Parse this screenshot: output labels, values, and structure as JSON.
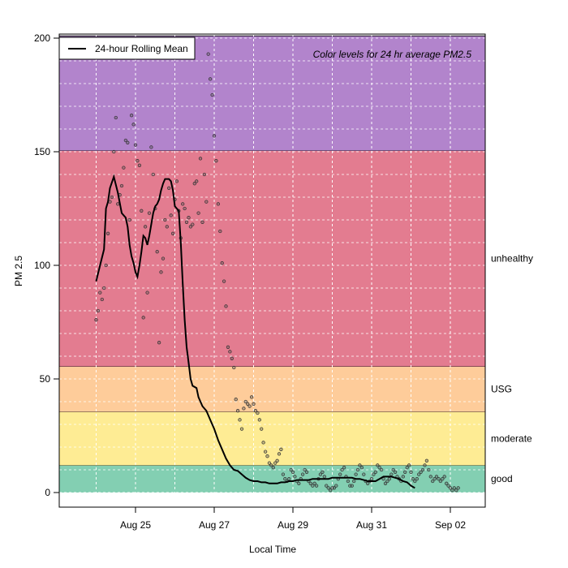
{
  "chart_data": {
    "type": "scatter",
    "title": "",
    "xlabel": "Local Time",
    "ylabel": "PM 2.5",
    "annotation": "Color levels for 24 hr average PM2.5",
    "legend": {
      "label": "24-hour Rolling Mean",
      "placement": "top-left"
    },
    "xlim": [
      0.6,
      11.5
    ],
    "ylim": [
      -6,
      201
    ],
    "grid": true,
    "x_ticks": [
      {
        "value": 2,
        "label": "Aug 25"
      },
      {
        "value": 4,
        "label": "Aug 27"
      },
      {
        "value": 6,
        "label": "Aug 29"
      },
      {
        "value": 8,
        "label": "Aug 31"
      },
      {
        "value": 10,
        "label": "Sep 02"
      }
    ],
    "y_ticks": [
      0,
      50,
      100,
      150,
      200
    ],
    "bands": [
      {
        "name": "good",
        "from": 0,
        "to": 12,
        "color": "#83cfb2"
      },
      {
        "name": "moderate",
        "from": 12,
        "to": 35.5,
        "color": "#feec94"
      },
      {
        "name": "USG",
        "from": 35.5,
        "to": 55.5,
        "color": "#fecc9a"
      },
      {
        "name": "unhealthy",
        "from": 55.5,
        "to": 150.5,
        "color": "#e37c90"
      },
      {
        "name": "",
        "from": 150.5,
        "to": 201,
        "color": "#b284cc"
      }
    ],
    "series": [
      {
        "type": "scatter",
        "points": [
          [
            1.0,
            76
          ],
          [
            1.05,
            80
          ],
          [
            1.1,
            88
          ],
          [
            1.15,
            85
          ],
          [
            1.2,
            90
          ],
          [
            1.25,
            100
          ],
          [
            1.3,
            114
          ],
          [
            1.35,
            128
          ],
          [
            1.4,
            130
          ],
          [
            1.45,
            150
          ],
          [
            1.5,
            165
          ],
          [
            1.55,
            127
          ],
          [
            1.6,
            131
          ],
          [
            1.65,
            135
          ],
          [
            1.7,
            143
          ],
          [
            1.75,
            155
          ],
          [
            1.8,
            154
          ],
          [
            1.85,
            120
          ],
          [
            1.9,
            166
          ],
          [
            1.95,
            162
          ],
          [
            2.0,
            153
          ],
          [
            2.05,
            146
          ],
          [
            2.1,
            144
          ],
          [
            2.15,
            124
          ],
          [
            2.2,
            77
          ],
          [
            2.25,
            117
          ],
          [
            2.3,
            88
          ],
          [
            2.35,
            123
          ],
          [
            2.4,
            152
          ],
          [
            2.45,
            140
          ],
          [
            2.5,
            125
          ],
          [
            2.55,
            106
          ],
          [
            2.6,
            66
          ],
          [
            2.65,
            97
          ],
          [
            2.7,
            103
          ],
          [
            2.75,
            120
          ],
          [
            2.8,
            117
          ],
          [
            2.85,
            134
          ],
          [
            2.9,
            122
          ],
          [
            2.95,
            114
          ],
          [
            3.0,
            129
          ],
          [
            3.05,
            137
          ],
          [
            3.1,
            124
          ],
          [
            3.15,
            112
          ],
          [
            3.2,
            127
          ],
          [
            3.25,
            125
          ],
          [
            3.3,
            119
          ],
          [
            3.35,
            121
          ],
          [
            3.4,
            117
          ],
          [
            3.45,
            118
          ],
          [
            3.5,
            136
          ],
          [
            3.55,
            137
          ],
          [
            3.6,
            123
          ],
          [
            3.65,
            147
          ],
          [
            3.7,
            119
          ],
          [
            3.75,
            140
          ],
          [
            3.8,
            128
          ],
          [
            3.85,
            193
          ],
          [
            3.9,
            182
          ],
          [
            3.95,
            175
          ],
          [
            4.0,
            157
          ],
          [
            4.05,
            146
          ],
          [
            4.1,
            127
          ],
          [
            4.15,
            115
          ],
          [
            4.2,
            101
          ],
          [
            4.25,
            93
          ],
          [
            4.3,
            82
          ],
          [
            4.35,
            64
          ],
          [
            4.4,
            62
          ],
          [
            4.45,
            59
          ],
          [
            4.5,
            55
          ],
          [
            4.55,
            41
          ],
          [
            4.6,
            36
          ],
          [
            4.65,
            32
          ],
          [
            4.7,
            28
          ],
          [
            4.75,
            37
          ],
          [
            4.8,
            40
          ],
          [
            4.85,
            39
          ],
          [
            4.9,
            38
          ],
          [
            4.95,
            42
          ],
          [
            5.0,
            39
          ],
          [
            5.05,
            36
          ],
          [
            5.1,
            35
          ],
          [
            5.15,
            32
          ],
          [
            5.2,
            28
          ],
          [
            5.25,
            22
          ],
          [
            5.3,
            18
          ],
          [
            5.35,
            16
          ],
          [
            5.4,
            13
          ],
          [
            5.45,
            12
          ],
          [
            5.5,
            11
          ],
          [
            5.55,
            13
          ],
          [
            5.6,
            14
          ],
          [
            5.65,
            17
          ],
          [
            5.7,
            19
          ],
          [
            5.75,
            8
          ],
          [
            5.8,
            6
          ],
          [
            5.85,
            5
          ],
          [
            5.9,
            6
          ],
          [
            5.95,
            10
          ],
          [
            6.0,
            9
          ],
          [
            6.05,
            7
          ],
          [
            6.1,
            5
          ],
          [
            6.15,
            4
          ],
          [
            6.2,
            6
          ],
          [
            6.25,
            8
          ],
          [
            6.3,
            10
          ],
          [
            6.35,
            9
          ],
          [
            6.4,
            5
          ],
          [
            6.45,
            4
          ],
          [
            6.5,
            3
          ],
          [
            6.55,
            4
          ],
          [
            6.6,
            3
          ],
          [
            6.65,
            6
          ],
          [
            6.7,
            8
          ],
          [
            6.75,
            9
          ],
          [
            6.8,
            7
          ],
          [
            6.85,
            3
          ],
          [
            6.9,
            2
          ],
          [
            6.95,
            1
          ],
          [
            7.0,
            2
          ],
          [
            7.05,
            2
          ],
          [
            7.1,
            3
          ],
          [
            7.15,
            6
          ],
          [
            7.2,
            8
          ],
          [
            7.25,
            10
          ],
          [
            7.3,
            11
          ],
          [
            7.35,
            7
          ],
          [
            7.4,
            5
          ],
          [
            7.45,
            3
          ],
          [
            7.5,
            3
          ],
          [
            7.55,
            5
          ],
          [
            7.6,
            8
          ],
          [
            7.65,
            10
          ],
          [
            7.7,
            12
          ],
          [
            7.75,
            11
          ],
          [
            7.8,
            8
          ],
          [
            7.85,
            5
          ],
          [
            7.9,
            4
          ],
          [
            7.95,
            5
          ],
          [
            8.0,
            6
          ],
          [
            8.05,
            8
          ],
          [
            8.1,
            9
          ],
          [
            8.15,
            12
          ],
          [
            8.2,
            11
          ],
          [
            8.25,
            10
          ],
          [
            8.3,
            6
          ],
          [
            8.35,
            4
          ],
          [
            8.4,
            5
          ],
          [
            8.45,
            6
          ],
          [
            8.5,
            8
          ],
          [
            8.55,
            10
          ],
          [
            8.6,
            9
          ],
          [
            8.65,
            7
          ],
          [
            8.7,
            6
          ],
          [
            8.75,
            5
          ],
          [
            8.8,
            7
          ],
          [
            8.85,
            9
          ],
          [
            8.9,
            11
          ],
          [
            8.95,
            12
          ],
          [
            9.0,
            9
          ],
          [
            9.05,
            6
          ],
          [
            9.1,
            5
          ],
          [
            9.15,
            6
          ],
          [
            9.2,
            8
          ],
          [
            9.25,
            9
          ],
          [
            9.3,
            10
          ],
          [
            9.35,
            12
          ],
          [
            9.4,
            14
          ],
          [
            9.45,
            10
          ],
          [
            9.5,
            7
          ],
          [
            9.55,
            5
          ],
          [
            9.6,
            6
          ],
          [
            9.65,
            7
          ],
          [
            9.7,
            6
          ],
          [
            9.75,
            5
          ],
          [
            9.8,
            6
          ],
          [
            9.85,
            7
          ],
          [
            9.9,
            4
          ],
          [
            9.95,
            3
          ],
          [
            10.0,
            2
          ],
          [
            10.05,
            1
          ],
          [
            10.1,
            2
          ],
          [
            10.15,
            1
          ],
          [
            10.2,
            2
          ]
        ]
      },
      {
        "name": "24-hour Rolling Mean",
        "type": "line",
        "points": [
          [
            1.0,
            93
          ],
          [
            1.1,
            100
          ],
          [
            1.2,
            107
          ],
          [
            1.25,
            125
          ],
          [
            1.3,
            128
          ],
          [
            1.35,
            134
          ],
          [
            1.45,
            139
          ],
          [
            1.55,
            132
          ],
          [
            1.65,
            123
          ],
          [
            1.7,
            122
          ],
          [
            1.75,
            121
          ],
          [
            1.8,
            117
          ],
          [
            1.85,
            109
          ],
          [
            1.9,
            104
          ],
          [
            1.95,
            101
          ],
          [
            2.0,
            97
          ],
          [
            2.05,
            95
          ],
          [
            2.1,
            100
          ],
          [
            2.15,
            106
          ],
          [
            2.2,
            113
          ],
          [
            2.25,
            112
          ],
          [
            2.3,
            109
          ],
          [
            2.35,
            113
          ],
          [
            2.4,
            118
          ],
          [
            2.45,
            123
          ],
          [
            2.5,
            126
          ],
          [
            2.55,
            127
          ],
          [
            2.6,
            129
          ],
          [
            2.65,
            133
          ],
          [
            2.7,
            136
          ],
          [
            2.75,
            138
          ],
          [
            2.8,
            138
          ],
          [
            2.85,
            138
          ],
          [
            2.9,
            137
          ],
          [
            2.95,
            133
          ],
          [
            3.0,
            126
          ],
          [
            3.05,
            125
          ],
          [
            3.1,
            124
          ],
          [
            3.15,
            110
          ],
          [
            3.2,
            92
          ],
          [
            3.25,
            76
          ],
          [
            3.3,
            64
          ],
          [
            3.35,
            57
          ],
          [
            3.4,
            50
          ],
          [
            3.45,
            47
          ],
          [
            3.55,
            46
          ],
          [
            3.6,
            42
          ],
          [
            3.7,
            38
          ],
          [
            3.8,
            36
          ],
          [
            3.9,
            32
          ],
          [
            4.0,
            28
          ],
          [
            4.1,
            23
          ],
          [
            4.2,
            19
          ],
          [
            4.3,
            15
          ],
          [
            4.4,
            12
          ],
          [
            4.5,
            10
          ],
          [
            4.6,
            9.5
          ],
          [
            4.7,
            8
          ],
          [
            4.8,
            6.5
          ],
          [
            4.9,
            5.5
          ],
          [
            5.0,
            5
          ],
          [
            5.1,
            5
          ],
          [
            5.2,
            4.5
          ],
          [
            5.3,
            4.5
          ],
          [
            5.4,
            4
          ],
          [
            5.5,
            4
          ],
          [
            5.6,
            4
          ],
          [
            5.7,
            4.5
          ],
          [
            5.8,
            4.5
          ],
          [
            5.9,
            5
          ],
          [
            6.0,
            5
          ],
          [
            6.1,
            5.5
          ],
          [
            6.2,
            5.5
          ],
          [
            6.3,
            5.5
          ],
          [
            6.4,
            5.5
          ],
          [
            6.5,
            6
          ],
          [
            6.6,
            6
          ],
          [
            6.7,
            6
          ],
          [
            6.8,
            6
          ],
          [
            6.9,
            6
          ],
          [
            7.0,
            6.5
          ],
          [
            7.1,
            6.5
          ],
          [
            7.2,
            6.5
          ],
          [
            7.3,
            6.5
          ],
          [
            7.4,
            6.5
          ],
          [
            7.5,
            6.5
          ],
          [
            7.6,
            6
          ],
          [
            7.7,
            6
          ],
          [
            7.8,
            5.5
          ],
          [
            7.9,
            5
          ],
          [
            8.0,
            5
          ],
          [
            8.1,
            5
          ],
          [
            8.2,
            6
          ],
          [
            8.3,
            7
          ],
          [
            8.4,
            7
          ],
          [
            8.5,
            7
          ],
          [
            8.6,
            6.5
          ],
          [
            8.7,
            6
          ],
          [
            8.8,
            5
          ],
          [
            8.9,
            4.5
          ],
          [
            9.0,
            3
          ],
          [
            9.1,
            2
          ]
        ]
      }
    ]
  }
}
